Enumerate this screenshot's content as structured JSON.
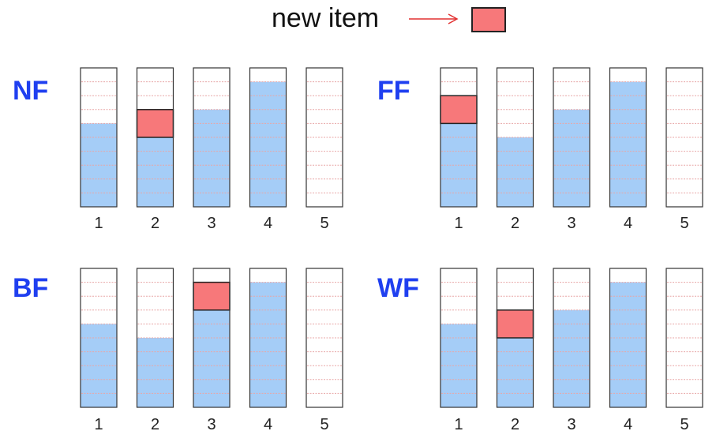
{
  "legend": {
    "text": "new item",
    "item_color": "#f7787a"
  },
  "colors": {
    "fill": "#a5cdf7",
    "new_item": "#f7787a",
    "slot_line": "#e8a6a6",
    "panel_label": "#1f3ff0"
  },
  "slot_count": 10,
  "panels": [
    {
      "label": "NF",
      "bin_labels": [
        "1",
        "2",
        "3",
        "4",
        "5"
      ],
      "fill_levels": [
        6,
        5,
        7,
        9,
        0
      ],
      "new_item_bin": 2,
      "new_item_size": 2
    },
    {
      "label": "FF",
      "bin_labels": [
        "1",
        "2",
        "3",
        "4",
        "5"
      ],
      "fill_levels": [
        6,
        5,
        7,
        9,
        0
      ],
      "new_item_bin": 1,
      "new_item_size": 2
    },
    {
      "label": "BF",
      "bin_labels": [
        "1",
        "2",
        "3",
        "4",
        "5"
      ],
      "fill_levels": [
        6,
        5,
        7,
        9,
        0
      ],
      "new_item_bin": 3,
      "new_item_size": 2
    },
    {
      "label": "WF",
      "bin_labels": [
        "1",
        "2",
        "3",
        "4",
        "5"
      ],
      "fill_levels": [
        6,
        5,
        7,
        9,
        0
      ],
      "new_item_bin": 2,
      "new_item_size": 2
    }
  ]
}
